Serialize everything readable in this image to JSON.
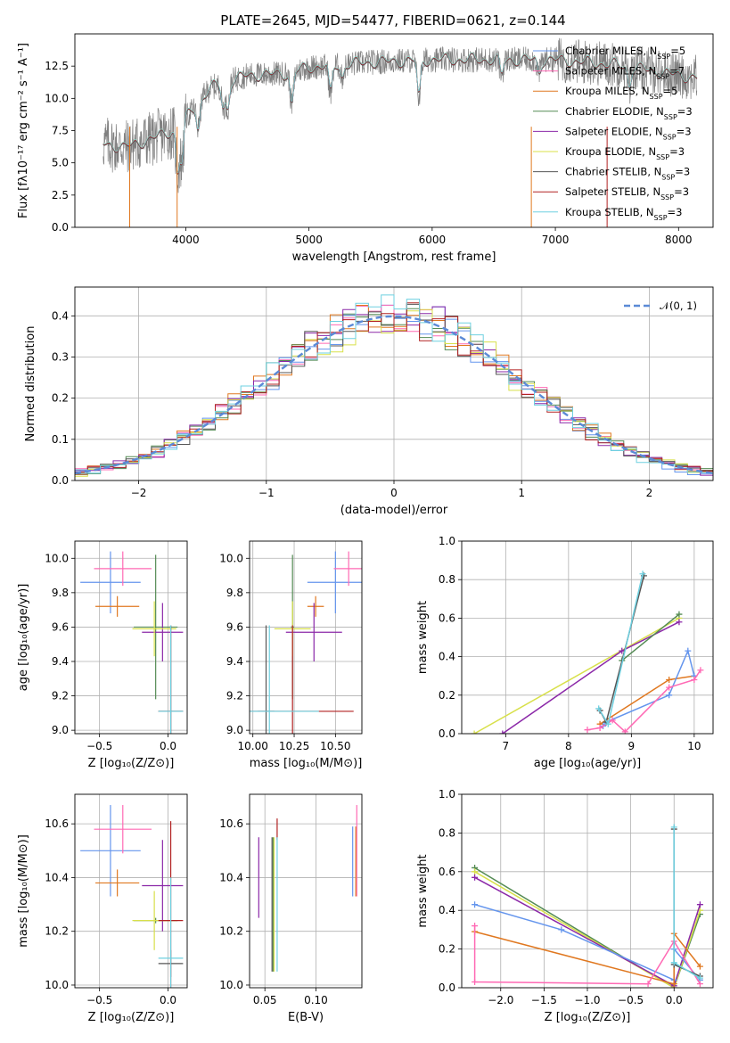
{
  "colors": {
    "Chabrier MILES": "#6495ed",
    "Salpeter MILES": "#ff69b4",
    "Kroupa MILES": "#e07820",
    "Chabrier ELODIE": "#548b54",
    "Salpeter ELODIE": "#8b28a8",
    "Kroupa ELODIE": "#d8e04a",
    "Chabrier STELIB": "#555555",
    "Salpeter STELIB": "#b22222",
    "Kroupa STELIB": "#6ed0e0",
    "gauss": "#5b8ad6"
  },
  "chart_data": [
    {
      "id": "spectrum",
      "type": "line",
      "title": "PLATE=2645, MJD=54477, FIBERID=0621, z=0.144",
      "xlabel": "wavelength [Angstrom, rest frame]",
      "ylabel": "Flux [fλ10⁻¹⁷ erg cm⁻² s⁻¹ A⁻¹]",
      "xlim": [
        3100,
        8280
      ],
      "ylim": [
        0,
        15
      ],
      "xticks": [
        "4000",
        "5000",
        "6000",
        "7000",
        "8000"
      ],
      "yticks": [
        "0.0",
        "2.5",
        "5.0",
        "7.5",
        "10.0",
        "12.5"
      ],
      "legend": [
        {
          "name": "Chabrier MILES",
          "ssp": "5"
        },
        {
          "name": "Salpeter MILES",
          "ssp": "7"
        },
        {
          "name": "Kroupa MILES",
          "ssp": "5"
        },
        {
          "name": "Chabrier ELODIE",
          "ssp": "3"
        },
        {
          "name": "Salpeter ELODIE",
          "ssp": "3"
        },
        {
          "name": "Kroupa ELODIE",
          "ssp": "3"
        },
        {
          "name": "Chabrier STELIB",
          "ssp": "3"
        },
        {
          "name": "Salpeter STELIB",
          "ssp": "3"
        },
        {
          "name": "Kroupa STELIB",
          "ssp": "3"
        }
      ],
      "continuum": [
        [
          3330,
          6.5
        ],
        [
          3500,
          6.2
        ],
        [
          3700,
          6.8
        ],
        [
          3900,
          7.5
        ],
        [
          4000,
          8.5
        ],
        [
          4200,
          10.8
        ],
        [
          4500,
          11.8
        ],
        [
          4800,
          11.9
        ],
        [
          5000,
          12.4
        ],
        [
          5500,
          12.8
        ],
        [
          6000,
          13.0
        ],
        [
          6500,
          13.0
        ],
        [
          7000,
          13.0
        ],
        [
          7500,
          12.6
        ],
        [
          8000,
          11.8
        ],
        [
          8150,
          11.6
        ]
      ]
    },
    {
      "id": "residuals",
      "type": "histogram",
      "xlabel": "(data-model)/error",
      "ylabel": "Normed distribution",
      "xlim": [
        -2.5,
        2.5
      ],
      "ylim": [
        0,
        0.47
      ],
      "xticks": [
        "−2",
        "−1",
        "0",
        "1",
        "2"
      ],
      "yticks": [
        "0.0",
        "0.1",
        "0.2",
        "0.3",
        "0.4"
      ],
      "legend": "𝒩(0, 1)",
      "grid": true,
      "bin_width": 0.1
    },
    {
      "id": "age-vs-Z",
      "type": "errorbar",
      "xlabel": "Z [log₁₀(Z/Z⊙)]",
      "ylabel": "age  [log₁₀(age/yr)]",
      "xlim": [
        -0.68,
        0.14
      ],
      "ylim": [
        8.98,
        10.1
      ],
      "xticks": [
        "−0.5",
        "0.0"
      ],
      "yticks": [
        "9.0",
        "9.2",
        "9.4",
        "9.6",
        "9.8",
        "10.0"
      ],
      "grid": true,
      "points": [
        {
          "series": "Chabrier MILES",
          "x": -0.42,
          "y": 9.86,
          "xerr": 0.22,
          "yerr": 0.18
        },
        {
          "series": "Salpeter MILES",
          "x": -0.33,
          "y": 9.94,
          "xerr": 0.21,
          "yerr": 0.1
        },
        {
          "series": "Kroupa MILES",
          "x": -0.37,
          "y": 9.72,
          "xerr": 0.16,
          "yerr": 0.06
        },
        {
          "series": "Chabrier ELODIE",
          "x": -0.09,
          "y": 9.6,
          "xerr": 0.16,
          "yerr": 0.42
        },
        {
          "series": "Salpeter ELODIE",
          "x": -0.04,
          "y": 9.57,
          "xerr": 0.15,
          "yerr": 0.17
        },
        {
          "series": "Kroupa ELODIE",
          "x": -0.1,
          "y": 9.59,
          "xerr": 0.16,
          "yerr": 0.16
        },
        {
          "series": "Chabrier STELIB",
          "x": 0.02,
          "y": 9.11,
          "xerr": 0.09,
          "yerr": 0.5
        },
        {
          "series": "Salpeter STELIB",
          "x": 0.02,
          "y": 9.11,
          "xerr": 0.09,
          "yerr": 0.5
        },
        {
          "series": "Kroupa STELIB",
          "x": 0.02,
          "y": 9.11,
          "xerr": 0.09,
          "yerr": 0.5
        }
      ]
    },
    {
      "id": "age-vs-mass",
      "type": "errorbar",
      "xlabel": "mass [log₁₀(M/M⊙)]",
      "xlim": [
        9.98,
        10.66
      ],
      "ylim": [
        8.98,
        10.1
      ],
      "xticks": [
        "10.00",
        "10.25",
        "10.50"
      ],
      "yticks": [
        "9.0",
        "9.2",
        "9.4",
        "9.6",
        "9.8",
        "10.0"
      ],
      "grid": true,
      "points": [
        {
          "series": "Chabrier MILES",
          "x": 10.5,
          "y": 9.86,
          "xerr": 0.17,
          "yerr": 0.18
        },
        {
          "series": "Salpeter MILES",
          "x": 10.58,
          "y": 9.94,
          "xerr": 0.09,
          "yerr": 0.1
        },
        {
          "series": "Kroupa MILES",
          "x": 10.38,
          "y": 9.72,
          "xerr": 0.05,
          "yerr": 0.06
        },
        {
          "series": "Chabrier ELODIE",
          "x": 10.24,
          "y": 9.6,
          "xerr": 0.01,
          "yerr": 0.42
        },
        {
          "series": "Salpeter ELODIE",
          "x": 10.37,
          "y": 9.57,
          "xerr": 0.17,
          "yerr": 0.17
        },
        {
          "series": "Kroupa ELODIE",
          "x": 10.24,
          "y": 9.59,
          "xerr": 0.11,
          "yerr": 0.16
        },
        {
          "series": "Chabrier STELIB",
          "x": 10.08,
          "y": 9.11,
          "xerr": 0.05,
          "yerr": 0.5
        },
        {
          "series": "Salpeter STELIB",
          "x": 10.24,
          "y": 9.11,
          "xerr": 0.37,
          "yerr": 0.5
        },
        {
          "series": "Kroupa STELIB",
          "x": 10.1,
          "y": 9.11,
          "xerr": 0.3,
          "yerr": 0.5
        }
      ]
    },
    {
      "id": "weight-vs-age",
      "type": "line",
      "xlabel": "age  [log₁₀(age/yr)]",
      "ylabel": "mass weight",
      "xlim": [
        6.3,
        10.3
      ],
      "ylim": [
        0,
        1
      ],
      "xticks": [
        "7",
        "8",
        "9",
        "10"
      ],
      "yticks": [
        "0.0",
        "0.2",
        "0.4",
        "0.6",
        "0.8",
        "1.0"
      ],
      "grid": true,
      "series": [
        {
          "key": "Kroupa ELODIE",
          "x": [
            6.5,
            9.76
          ],
          "y": [
            0.0,
            0.6
          ]
        },
        {
          "key": "Salpeter ELODIE",
          "x": [
            6.95,
            8.85,
            9.76
          ],
          "y": [
            0.0,
            0.43,
            0.58
          ]
        },
        {
          "key": "Chabrier ELODIE",
          "x": [
            8.85,
            9.76
          ],
          "y": [
            0.38,
            0.62
          ]
        },
        {
          "key": "Kroupa MILES",
          "x": [
            8.5,
            9.6,
            10.0
          ],
          "y": [
            0.05,
            0.28,
            0.3
          ]
        },
        {
          "key": "Chabrier MILES",
          "x": [
            8.55,
            8.6,
            9.6,
            9.9,
            10.0
          ],
          "y": [
            0.04,
            0.06,
            0.2,
            0.43,
            0.3
          ]
        },
        {
          "key": "Salpeter MILES",
          "x": [
            8.3,
            8.5,
            8.7,
            8.9,
            9.6,
            10.0,
            10.1
          ],
          "y": [
            0.02,
            0.03,
            0.07,
            0.01,
            0.24,
            0.28,
            0.33
          ]
        },
        {
          "key": "Chabrier STELIB",
          "x": [
            8.5,
            8.6,
            9.2
          ],
          "y": [
            0.12,
            0.06,
            0.82
          ]
        },
        {
          "key": "Kroupa STELIB",
          "x": [
            8.48,
            8.63,
            9.18
          ],
          "y": [
            0.13,
            0.05,
            0.83
          ]
        }
      ]
    },
    {
      "id": "mass-vs-Z",
      "type": "errorbar",
      "xlabel": "Z [log₁₀(Z/Z⊙)]",
      "ylabel": "mass [log₁₀(M/M⊙)]",
      "xlim": [
        -0.68,
        0.14
      ],
      "ylim": [
        9.99,
        10.71
      ],
      "xticks": [
        "−0.5",
        "0.0"
      ],
      "yticks": [
        "10.0",
        "10.2",
        "10.4",
        "10.6"
      ],
      "grid": true,
      "points": [
        {
          "series": "Chabrier MILES",
          "x": -0.42,
          "y": 10.5,
          "xerr": 0.22,
          "yerr": 0.17
        },
        {
          "series": "Salpeter MILES",
          "x": -0.33,
          "y": 10.58,
          "xerr": 0.21,
          "yerr": 0.09
        },
        {
          "series": "Kroupa MILES",
          "x": -0.37,
          "y": 10.38,
          "xerr": 0.16,
          "yerr": 0.05
        },
        {
          "series": "Chabrier ELODIE",
          "x": -0.09,
          "y": 10.24,
          "xerr": 0.16,
          "yerr": 0.01
        },
        {
          "series": "Salpeter ELODIE",
          "x": -0.04,
          "y": 10.37,
          "xerr": 0.15,
          "yerr": 0.17
        },
        {
          "series": "Kroupa ELODIE",
          "x": -0.1,
          "y": 10.24,
          "xerr": 0.16,
          "yerr": 0.11
        },
        {
          "series": "Chabrier STELIB",
          "x": 0.02,
          "y": 10.08,
          "xerr": 0.09,
          "yerr": 0.05
        },
        {
          "series": "Salpeter STELIB",
          "x": 0.02,
          "y": 10.24,
          "xerr": 0.09,
          "yerr": 0.37
        },
        {
          "series": "Kroupa STELIB",
          "x": 0.02,
          "y": 10.1,
          "xerr": 0.09,
          "yerr": 0.3
        }
      ]
    },
    {
      "id": "mass-vs-ebv",
      "type": "errorbar",
      "xlabel": "E(B-V)",
      "xlim": [
        0.035,
        0.145
      ],
      "ylim": [
        9.99,
        10.71
      ],
      "xticks": [
        "0.05",
        "0.10"
      ],
      "yticks": [
        "10.0",
        "10.2",
        "10.4",
        "10.6"
      ],
      "grid": true,
      "points": [
        {
          "series": "Salpeter ELODIE",
          "x": 0.044,
          "y": 10.4,
          "xerr": 0,
          "yerr": 0.15
        },
        {
          "series": "Chabrier STELIB",
          "x": 0.057,
          "y": 10.3,
          "xerr": 0,
          "yerr": 0.25
        },
        {
          "series": "Chabrier ELODIE",
          "x": 0.058,
          "y": 10.3,
          "xerr": 0,
          "yerr": 0.25
        },
        {
          "series": "Kroupa ELODIE",
          "x": 0.059,
          "y": 10.3,
          "xerr": 0,
          "yerr": 0.25
        },
        {
          "series": "Salpeter STELIB",
          "x": 0.062,
          "y": 10.58,
          "xerr": 0,
          "yerr": 0.04
        },
        {
          "series": "Kroupa STELIB",
          "x": 0.062,
          "y": 10.3,
          "xerr": 0,
          "yerr": 0.25
        },
        {
          "series": "Chabrier MILES",
          "x": 0.136,
          "y": 10.46,
          "xerr": 0,
          "yerr": 0.13
        },
        {
          "series": "Salpeter MILES",
          "x": 0.14,
          "y": 10.5,
          "xerr": 0,
          "yerr": 0.17
        },
        {
          "series": "Kroupa MILES",
          "x": 0.139,
          "y": 10.46,
          "xerr": 0,
          "yerr": 0.13
        }
      ]
    },
    {
      "id": "weight-vs-Z",
      "type": "line",
      "xlabel": "Z [log₁₀(Z/Z⊙)]",
      "ylabel": "mass weight",
      "xlim": [
        -2.45,
        0.45
      ],
      "ylim": [
        0,
        1
      ],
      "xticks": [
        "−2.0",
        "−1.5",
        "−1.0",
        "−0.5",
        "0.0"
      ],
      "yticks": [
        "0.0",
        "0.2",
        "0.4",
        "0.6",
        "0.8",
        "1.0"
      ],
      "grid": true,
      "series": [
        {
          "key": "Chabrier ELODIE",
          "x": [
            -2.3,
            0.0,
            0.3
          ],
          "y": [
            0.62,
            0.0,
            0.38
          ]
        },
        {
          "key": "Kroupa ELODIE",
          "x": [
            -2.3,
            0.0,
            0.3
          ],
          "y": [
            0.6,
            0.0,
            0.4
          ]
        },
        {
          "key": "Salpeter ELODIE",
          "x": [
            -2.3,
            0.0,
            0.3
          ],
          "y": [
            0.57,
            0.01,
            0.43
          ]
        },
        {
          "key": "Chabrier MILES",
          "x": [
            -2.3,
            -1.3,
            0.0,
            0.0,
            0.3
          ],
          "y": [
            0.43,
            0.3,
            0.04,
            0.2,
            0.04
          ]
        },
        {
          "key": "Kroupa MILES",
          "x": [
            -2.3,
            0.0,
            0.0,
            0.3
          ],
          "y": [
            0.29,
            0.02,
            0.28,
            0.11
          ]
        },
        {
          "key": "Salpeter MILES",
          "x": [
            -2.3,
            -2.3,
            -0.3,
            0.0,
            0.3
          ],
          "y": [
            0.32,
            0.03,
            0.02,
            0.24,
            0.02
          ]
        },
        {
          "key": "Chabrier STELIB",
          "x": [
            0.0,
            0.0,
            0.3
          ],
          "y": [
            0.82,
            0.12,
            0.06
          ]
        },
        {
          "key": "Kroupa STELIB",
          "x": [
            0.0,
            0.0,
            0.3
          ],
          "y": [
            0.83,
            0.13,
            0.05
          ]
        }
      ]
    }
  ]
}
